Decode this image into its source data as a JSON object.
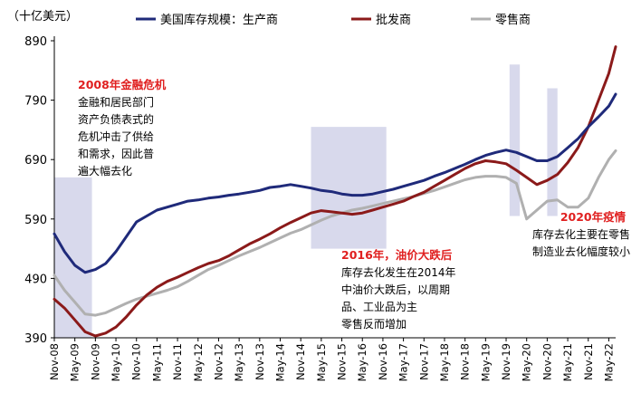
{
  "chart_data": {
    "type": "line",
    "unit_label": "（十亿美元）",
    "y_ticks": [
      390,
      490,
      590,
      690,
      790,
      890
    ],
    "ylim": [
      390,
      890
    ],
    "x_tick_labels": [
      "Nov-08",
      "May-09",
      "Nov-09",
      "May-10",
      "Nov-10",
      "May-11",
      "Nov-11",
      "May-12",
      "Nov-12",
      "May-13",
      "Nov-13",
      "May-14",
      "Nov-14",
      "May-15",
      "Nov-15",
      "May-16",
      "Nov-16",
      "May-17",
      "Nov-17",
      "May-18",
      "Nov-18",
      "May-19",
      "Nov-19",
      "May-20",
      "Nov-20",
      "May-21",
      "Nov-21",
      "May-22"
    ],
    "x_range": [
      "Nov-08",
      "Jul-22"
    ],
    "series": [
      {
        "name": "美国库存规模：生产商",
        "color": "#1f2a7a",
        "points": [
          [
            "Nov-08",
            565
          ],
          [
            "Feb-09",
            535
          ],
          [
            "May-09",
            512
          ],
          [
            "Aug-09",
            500
          ],
          [
            "Nov-09",
            505
          ],
          [
            "Feb-10",
            515
          ],
          [
            "May-10",
            535
          ],
          [
            "Aug-10",
            560
          ],
          [
            "Nov-10",
            585
          ],
          [
            "Feb-11",
            595
          ],
          [
            "May-11",
            605
          ],
          [
            "Aug-11",
            610
          ],
          [
            "Nov-11",
            615
          ],
          [
            "Feb-12",
            620
          ],
          [
            "May-12",
            622
          ],
          [
            "Aug-12",
            625
          ],
          [
            "Nov-12",
            627
          ],
          [
            "Feb-13",
            630
          ],
          [
            "May-13",
            632
          ],
          [
            "Aug-13",
            635
          ],
          [
            "Nov-13",
            638
          ],
          [
            "Feb-14",
            643
          ],
          [
            "May-14",
            645
          ],
          [
            "Aug-14",
            648
          ],
          [
            "Nov-14",
            645
          ],
          [
            "Feb-15",
            642
          ],
          [
            "May-15",
            638
          ],
          [
            "Aug-15",
            636
          ],
          [
            "Nov-15",
            632
          ],
          [
            "Feb-16",
            630
          ],
          [
            "May-16",
            630
          ],
          [
            "Aug-16",
            632
          ],
          [
            "Nov-16",
            636
          ],
          [
            "Feb-17",
            640
          ],
          [
            "May-17",
            645
          ],
          [
            "Aug-17",
            650
          ],
          [
            "Nov-17",
            655
          ],
          [
            "Feb-18",
            662
          ],
          [
            "May-18",
            668
          ],
          [
            "Aug-18",
            675
          ],
          [
            "Nov-18",
            682
          ],
          [
            "Feb-19",
            690
          ],
          [
            "May-19",
            697
          ],
          [
            "Aug-19",
            702
          ],
          [
            "Nov-19",
            706
          ],
          [
            "Feb-20",
            702
          ],
          [
            "May-20",
            695
          ],
          [
            "Aug-20",
            688
          ],
          [
            "Nov-20",
            688
          ],
          [
            "Feb-21",
            695
          ],
          [
            "May-21",
            710
          ],
          [
            "Aug-21",
            725
          ],
          [
            "Nov-21",
            745
          ],
          [
            "Feb-22",
            762
          ],
          [
            "May-22",
            780
          ],
          [
            "Jul-22",
            800
          ]
        ]
      },
      {
        "name": "批发商",
        "color": "#8b1a1a",
        "points": [
          [
            "Nov-08",
            455
          ],
          [
            "Feb-09",
            440
          ],
          [
            "May-09",
            420
          ],
          [
            "Aug-09",
            400
          ],
          [
            "Nov-09",
            393
          ],
          [
            "Feb-10",
            398
          ],
          [
            "May-10",
            408
          ],
          [
            "Aug-10",
            425
          ],
          [
            "Nov-10",
            445
          ],
          [
            "Feb-11",
            462
          ],
          [
            "May-11",
            475
          ],
          [
            "Aug-11",
            485
          ],
          [
            "Nov-11",
            492
          ],
          [
            "Feb-12",
            500
          ],
          [
            "May-12",
            508
          ],
          [
            "Aug-12",
            515
          ],
          [
            "Nov-12",
            520
          ],
          [
            "Feb-13",
            528
          ],
          [
            "May-13",
            538
          ],
          [
            "Aug-13",
            548
          ],
          [
            "Nov-13",
            556
          ],
          [
            "Feb-14",
            565
          ],
          [
            "May-14",
            575
          ],
          [
            "Aug-14",
            584
          ],
          [
            "Nov-14",
            592
          ],
          [
            "Feb-15",
            600
          ],
          [
            "May-15",
            604
          ],
          [
            "Aug-15",
            602
          ],
          [
            "Nov-15",
            600
          ],
          [
            "Feb-16",
            598
          ],
          [
            "May-16",
            600
          ],
          [
            "Aug-16",
            605
          ],
          [
            "Nov-16",
            610
          ],
          [
            "Feb-17",
            615
          ],
          [
            "May-17",
            620
          ],
          [
            "Aug-17",
            628
          ],
          [
            "Nov-17",
            635
          ],
          [
            "Feb-18",
            645
          ],
          [
            "May-18",
            655
          ],
          [
            "Aug-18",
            665
          ],
          [
            "Nov-18",
            675
          ],
          [
            "Feb-19",
            683
          ],
          [
            "May-19",
            688
          ],
          [
            "Aug-19",
            686
          ],
          [
            "Nov-19",
            683
          ],
          [
            "Feb-20",
            672
          ],
          [
            "May-20",
            660
          ],
          [
            "Aug-20",
            648
          ],
          [
            "Nov-20",
            655
          ],
          [
            "Feb-21",
            665
          ],
          [
            "May-21",
            685
          ],
          [
            "Aug-21",
            710
          ],
          [
            "Nov-21",
            745
          ],
          [
            "Feb-22",
            790
          ],
          [
            "May-22",
            835
          ],
          [
            "Jul-22",
            880
          ]
        ]
      },
      {
        "name": "零售商",
        "color": "#b0b0b0",
        "points": [
          [
            "Nov-08",
            495
          ],
          [
            "Feb-09",
            470
          ],
          [
            "May-09",
            450
          ],
          [
            "Aug-09",
            430
          ],
          [
            "Nov-09",
            428
          ],
          [
            "Feb-10",
            432
          ],
          [
            "May-10",
            440
          ],
          [
            "Aug-10",
            448
          ],
          [
            "Nov-10",
            455
          ],
          [
            "Feb-11",
            460
          ],
          [
            "May-11",
            465
          ],
          [
            "Aug-11",
            470
          ],
          [
            "Nov-11",
            476
          ],
          [
            "Feb-12",
            485
          ],
          [
            "May-12",
            495
          ],
          [
            "Aug-12",
            505
          ],
          [
            "Nov-12",
            512
          ],
          [
            "Feb-13",
            520
          ],
          [
            "May-13",
            528
          ],
          [
            "Aug-13",
            535
          ],
          [
            "Nov-13",
            542
          ],
          [
            "Feb-14",
            550
          ],
          [
            "May-14",
            558
          ],
          [
            "Aug-14",
            566
          ],
          [
            "Nov-14",
            572
          ],
          [
            "Feb-15",
            580
          ],
          [
            "May-15",
            588
          ],
          [
            "Aug-15",
            595
          ],
          [
            "Nov-15",
            600
          ],
          [
            "Feb-16",
            605
          ],
          [
            "May-16",
            608
          ],
          [
            "Aug-16",
            612
          ],
          [
            "Nov-16",
            616
          ],
          [
            "Feb-17",
            620
          ],
          [
            "May-17",
            624
          ],
          [
            "Aug-17",
            628
          ],
          [
            "Nov-17",
            633
          ],
          [
            "Feb-18",
            638
          ],
          [
            "May-18",
            644
          ],
          [
            "Aug-18",
            650
          ],
          [
            "Nov-18",
            656
          ],
          [
            "Feb-19",
            660
          ],
          [
            "May-19",
            662
          ],
          [
            "Aug-19",
            662
          ],
          [
            "Nov-19",
            660
          ],
          [
            "Feb-20",
            650
          ],
          [
            "May-20",
            590
          ],
          [
            "Aug-20",
            605
          ],
          [
            "Nov-20",
            620
          ],
          [
            "Feb-21",
            622
          ],
          [
            "May-21",
            610
          ],
          [
            "Aug-21",
            610
          ],
          [
            "Nov-21",
            625
          ],
          [
            "Feb-22",
            660
          ],
          [
            "May-22",
            690
          ],
          [
            "Jul-22",
            705
          ]
        ]
      }
    ],
    "shaded_periods": [
      {
        "from": "Nov-08",
        "to": "Oct-09",
        "ymin": 390,
        "ymax": 660
      },
      {
        "from": "Feb-15",
        "to": "Dec-16",
        "ymin": 540,
        "ymax": 745
      },
      {
        "from": "Dec-19",
        "to": "Mar-20",
        "ymin": 595,
        "ymax": 850
      },
      {
        "from": "Nov-20",
        "to": "Feb-21",
        "ymin": 595,
        "ymax": 810
      }
    ],
    "annotations": [
      {
        "title": "2008年金融危机",
        "lines": [
          "金融和居民部门",
          "资产负债表式的",
          "危机冲击了供给",
          "和需求，因此普",
          "遍大幅去化"
        ]
      },
      {
        "title": "2016年，油价大跌后",
        "lines": [
          "库存去化发生在2014年",
          "中油价大跌后，以周期",
          "品、工业品为主",
          "零售反而增加"
        ]
      },
      {
        "title": "2020年疫情",
        "lines": [
          "库存去化主要在零售",
          "制造业去化幅度较小"
        ]
      }
    ],
    "legend_placement": "top",
    "grid": false
  }
}
